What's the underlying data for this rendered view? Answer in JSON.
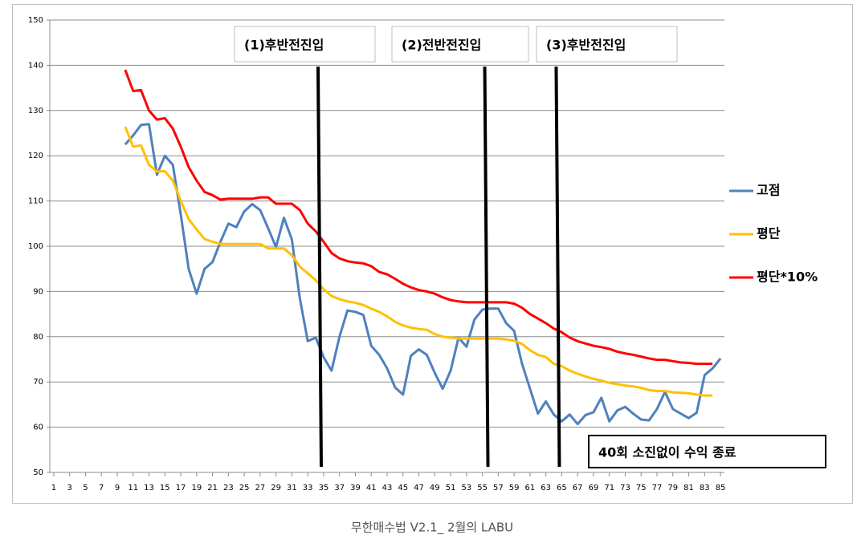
{
  "chart_data": {
    "type": "line",
    "x": [
      10,
      11,
      12,
      13,
      14,
      15,
      16,
      17,
      18,
      19,
      20,
      21,
      22,
      23,
      24,
      25,
      26,
      27,
      28,
      29,
      30,
      31,
      32,
      33,
      34,
      35,
      36,
      37,
      38,
      39,
      40,
      41,
      42,
      43,
      44,
      45,
      46,
      47,
      48,
      49,
      50,
      51,
      52,
      53,
      54,
      55,
      56,
      57,
      58,
      59,
      60,
      61,
      62,
      63,
      64,
      65,
      66,
      67,
      68,
      69,
      70,
      71,
      72,
      73,
      74,
      75,
      76,
      77,
      78,
      79,
      80,
      81,
      82,
      83,
      84,
      85
    ],
    "series": [
      {
        "name": "고점",
        "color": "#4f81bd",
        "values": [
          122.5,
          124.5,
          126.8,
          127,
          115.8,
          120,
          118,
          107,
          95,
          89.5,
          95,
          96.5,
          101,
          105,
          104.2,
          107.7,
          109.3,
          108,
          104,
          99.8,
          106.3,
          101.5,
          88.5,
          79,
          79.8,
          75.5,
          72.5,
          80,
          85.8,
          85.5,
          84.8,
          78,
          76,
          73,
          68.8,
          67.2,
          75.8,
          77.2,
          76,
          72,
          68.5,
          72.5,
          79.8,
          77.8,
          83.8,
          86,
          86.2,
          86.2,
          83,
          81.3,
          74,
          68.5,
          63,
          65.7,
          62.8,
          61.3,
          62.8,
          60.7,
          62.7,
          63.3,
          66.5,
          61.3,
          63.7,
          64.5,
          63,
          61.7,
          61.5,
          64,
          67.8,
          64,
          63,
          62,
          63.2,
          71.5,
          73,
          75.2
        ]
      },
      {
        "name": "평단",
        "color": "#ffc000",
        "values": [
          126.4,
          122,
          122.3,
          118,
          116.5,
          116.6,
          114.5,
          110,
          106,
          103.7,
          101.6,
          101,
          100.5,
          100.5,
          100.5,
          100.5,
          100.5,
          100.5,
          99.5,
          99.5,
          99.5,
          98,
          95.5,
          94,
          92.5,
          90.5,
          89,
          88.3,
          87.8,
          87.5,
          87,
          86.2,
          85.5,
          84.5,
          83.3,
          82.5,
          82,
          81.7,
          81.5,
          80.6,
          80,
          79.8,
          79.6,
          79.6,
          79.6,
          79.6,
          79.6,
          79.6,
          79.4,
          79.1,
          78.4,
          77,
          76,
          75.5,
          74,
          73.5,
          72.5,
          71.8,
          71.2,
          70.7,
          70.3,
          69.8,
          69.5,
          69.2,
          69,
          68.7,
          68.2,
          68,
          68,
          67.7,
          67.6,
          67.5,
          67.2,
          67,
          67,
          null
        ]
      },
      {
        "name": "평단*10%",
        "color": "#ff0000",
        "values": [
          139,
          134.3,
          134.5,
          130,
          128,
          128.3,
          126,
          122,
          117.5,
          114.5,
          112,
          111.3,
          110.3,
          110.5,
          110.5,
          110.5,
          110.5,
          110.8,
          110.8,
          109.4,
          109.4,
          109.4,
          108,
          105,
          103.3,
          101,
          98.5,
          97.3,
          96.7,
          96.4,
          96.2,
          95.6,
          94.3,
          93.8,
          92.8,
          91.7,
          90.9,
          90.3,
          90,
          89.5,
          88.7,
          88.1,
          87.8,
          87.6,
          87.6,
          87.6,
          87.6,
          87.6,
          87.6,
          87.3,
          86.4,
          85,
          84,
          83,
          81.8,
          81,
          79.8,
          79,
          78.5,
          78,
          77.7,
          77.3,
          76.7,
          76.3,
          76,
          75.6,
          75.2,
          74.9,
          74.9,
          74.6,
          74.3,
          74.2,
          74,
          74,
          74,
          null
        ]
      }
    ],
    "xlim": [
      0.5,
      85.5
    ],
    "xticks": [
      1,
      3,
      5,
      7,
      9,
      11,
      13,
      15,
      17,
      19,
      21,
      23,
      25,
      27,
      29,
      31,
      33,
      35,
      37,
      39,
      41,
      43,
      45,
      47,
      49,
      51,
      53,
      55,
      57,
      59,
      61,
      63,
      65,
      67,
      69,
      71,
      73,
      75,
      77,
      79,
      81,
      83,
      85
    ],
    "ylim": [
      50,
      150
    ],
    "yticks": [
      50,
      60,
      70,
      80,
      90,
      100,
      110,
      120,
      130,
      140,
      150
    ],
    "grid": true,
    "legend": "right",
    "annotations": [
      {
        "text": "(1)후반전진입",
        "x": 34.5
      },
      {
        "text": "(2)전반전진입",
        "x": 55.5
      },
      {
        "text": "(3)후반전진입",
        "x": 64.5
      }
    ],
    "note": "40회 소진없이 수익 종료"
  },
  "caption": "무한매수법 V2.1_ 2월의 LABU"
}
